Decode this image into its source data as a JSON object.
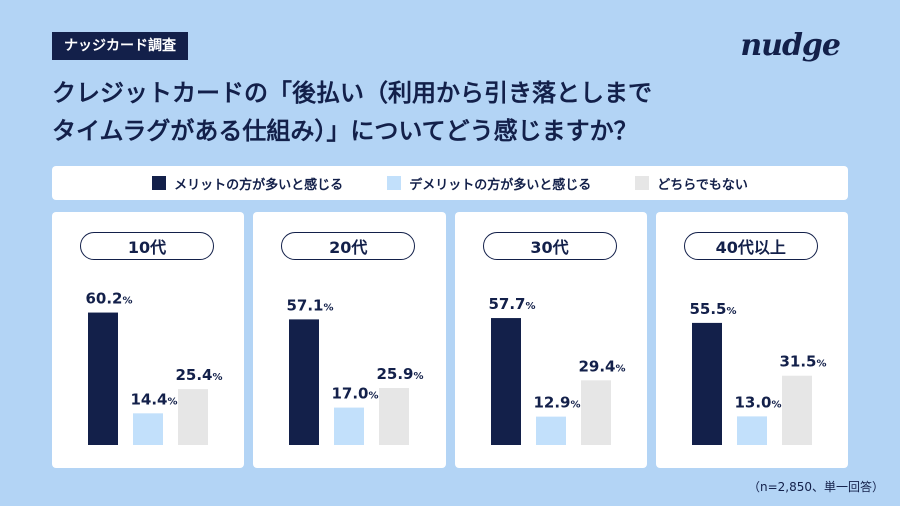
{
  "header": {
    "tag": "ナッジカード調査",
    "logo": "nudge",
    "title_line1": "クレジットカードの「後払い（利用から引き落としまで",
    "title_line2": "タイムラグがある仕組み）」についてどう感じますか？"
  },
  "footnote": "（n=2,850、単一回答）",
  "chart_data": {
    "type": "bar",
    "unit": "%",
    "legend": [
      {
        "label": "メリットの方が多いと感じる",
        "color": "#13204a"
      },
      {
        "label": "デメリットの方が多いと感じる",
        "color": "#c2e0fb"
      },
      {
        "label": "どちらでもない",
        "color": "#e6e6e6"
      }
    ],
    "panels": [
      {
        "group": "10代",
        "values": [
          60.2,
          14.4,
          25.4
        ]
      },
      {
        "group": "20代",
        "values": [
          57.1,
          17.0,
          25.9
        ]
      },
      {
        "group": "30代",
        "values": [
          57.7,
          12.9,
          29.4
        ]
      },
      {
        "group": "40代以上",
        "values": [
          55.5,
          13.0,
          31.5
        ]
      }
    ]
  }
}
